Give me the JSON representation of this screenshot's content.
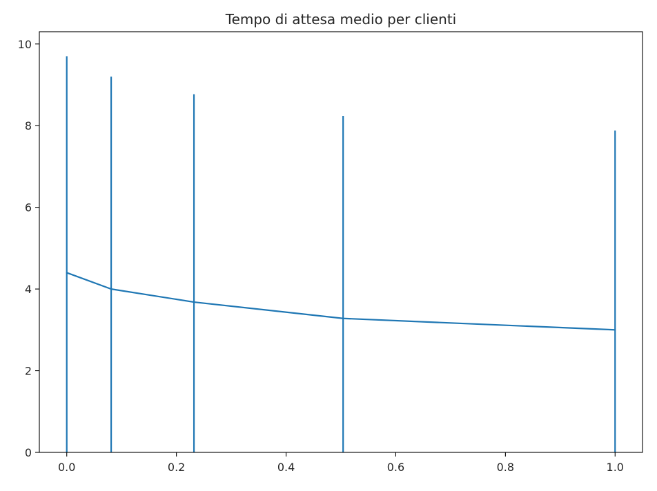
{
  "chart_data": {
    "type": "line",
    "title": "Tempo di attesa medio per clienti",
    "xlabel": "",
    "ylabel": "",
    "xlim": [
      -0.05,
      1.05
    ],
    "ylim": [
      0,
      10.3
    ],
    "x_ticks": [
      0.0,
      0.2,
      0.4,
      0.6,
      0.8,
      1.0
    ],
    "x_tick_labels": [
      "0.0",
      "0.2",
      "0.4",
      "0.6",
      "0.8",
      "1.0"
    ],
    "y_ticks": [
      0,
      2,
      4,
      6,
      8,
      10
    ],
    "y_tick_labels": [
      "0",
      "2",
      "4",
      "6",
      "8",
      "10"
    ],
    "grid": false,
    "legend": "none",
    "color": "#1f77b4",
    "series": [
      {
        "x": [
          0.0,
          0.081,
          0.232,
          0.504,
          1.0
        ],
        "y": [
          4.4,
          4.0,
          3.68,
          3.28,
          3.0
        ],
        "error_bar_upper": [
          9.7,
          9.2,
          8.77,
          8.24,
          7.88
        ],
        "error_bar_lower": [
          0,
          0,
          0,
          0,
          0
        ]
      }
    ]
  }
}
